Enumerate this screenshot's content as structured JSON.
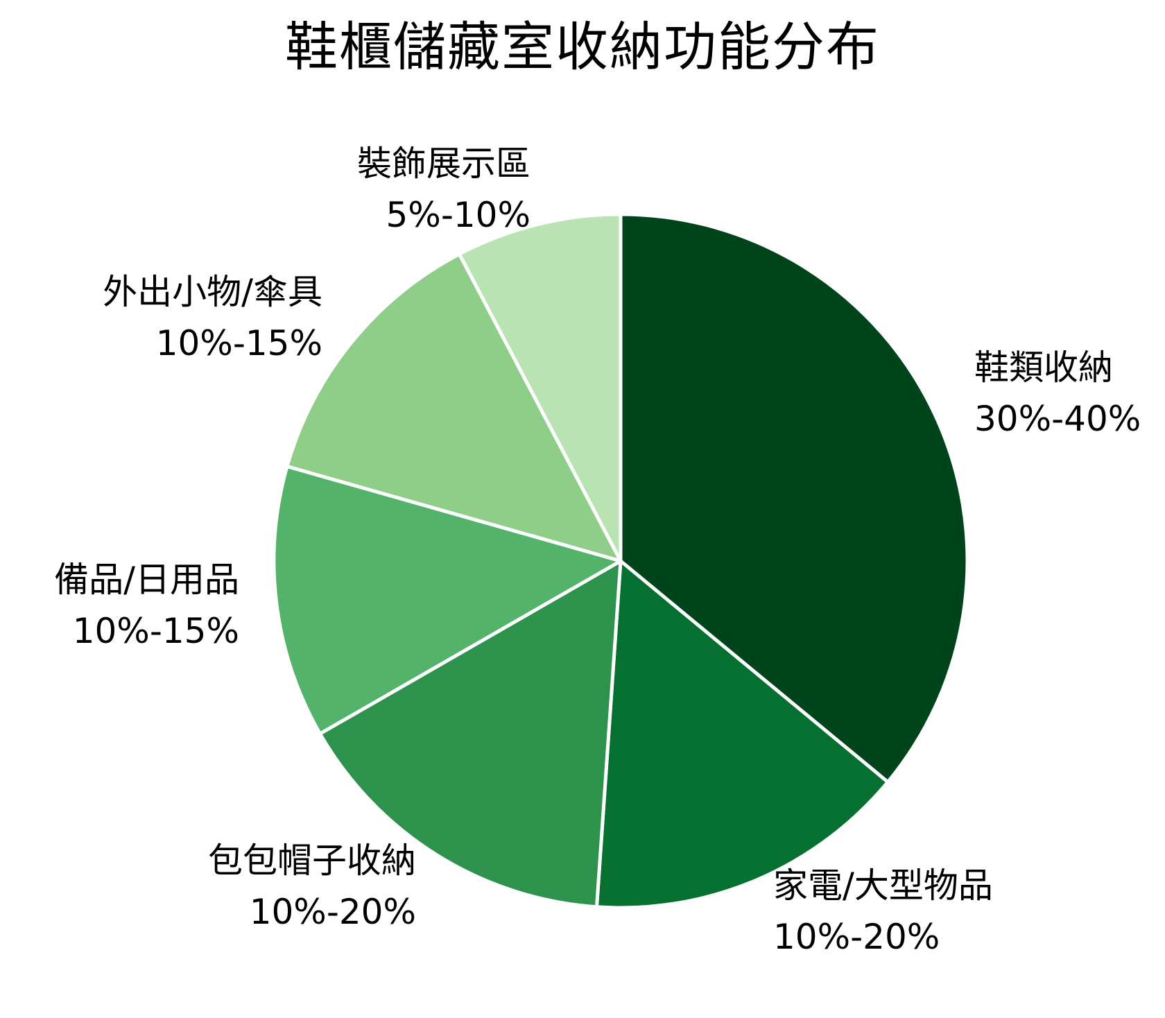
{
  "title": "鞋櫃儲藏室收納功能分布",
  "chart_data": {
    "type": "pie",
    "title": "鞋櫃儲藏室收納功能分布",
    "start_angle": "12 o'clock, clockwise",
    "categories": [
      "鞋類收納",
      "家電/大型物品",
      "包包帽子收納",
      "備品/日用品",
      "外出小物/傘具",
      "裝飾展示區"
    ],
    "range_labels": [
      "30%-40%",
      "10%-20%",
      "10%-20%",
      "10%-15%",
      "10%-15%",
      "5%-10%"
    ],
    "values": [
      36.0,
      15.1,
      15.6,
      12.7,
      12.9,
      7.7
    ],
    "colors": [
      "#00441b",
      "#067030",
      "#2c924c",
      "#54b36a",
      "#8fce88",
      "#b9e3b3"
    ],
    "legend": "none (direct labels)"
  },
  "slices": [
    {
      "name": "鞋類收納",
      "range": "30%-40%",
      "color": "#00441b"
    },
    {
      "name": "家電/大型物品",
      "range": "10%-20%",
      "color": "#067030"
    },
    {
      "name": "包包帽子收納",
      "range": "10%-20%",
      "color": "#2c924c"
    },
    {
      "name": "備品/日用品",
      "range": "10%-15%",
      "color": "#54b36a"
    },
    {
      "name": "外出小物/傘具",
      "range": "10%-15%",
      "color": "#8fce88"
    },
    {
      "name": "裝飾展示區",
      "range": "5%-10%",
      "color": "#b9e3b3"
    }
  ]
}
